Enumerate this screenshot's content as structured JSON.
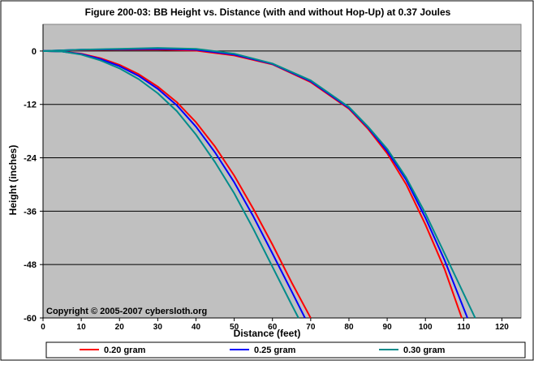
{
  "chart_data": {
    "type": "line",
    "title": "Figure 200-03:  BB Height vs. Distance (with and without Hop-Up) at 0.37 Joules",
    "xlabel": "Distance (feet)",
    "ylabel": "Height (inches)",
    "xlim": [
      0,
      125
    ],
    "ylim": [
      -60,
      6
    ],
    "x_ticks": [
      0,
      10,
      20,
      30,
      40,
      50,
      60,
      70,
      80,
      90,
      100,
      110,
      120
    ],
    "y_ticks": [
      0,
      -12,
      -24,
      -36,
      -48,
      -60
    ],
    "grid": "horizontal",
    "plot_background": "#c0c0c0",
    "legend_position": "bottom",
    "annotation": "Copyright © 2005-2007 cybersloth.org",
    "series": [
      {
        "name": "0.20 gram",
        "color": "#ff0000",
        "curves": [
          [
            [
              0,
              0
            ],
            [
              5,
              -0.1
            ],
            [
              10,
              -0.6
            ],
            [
              15,
              -1.6
            ],
            [
              20,
              -3.1
            ],
            [
              25,
              -5.2
            ],
            [
              30,
              -8.0
            ],
            [
              35,
              -11.5
            ],
            [
              40,
              -16.0
            ],
            [
              45,
              -21.5
            ],
            [
              50,
              -28.0
            ],
            [
              55,
              -35.5
            ],
            [
              60,
              -43.5
            ],
            [
              65,
              -52.0
            ],
            [
              70,
              -60.0
            ]
          ],
          [
            [
              0,
              0
            ],
            [
              10,
              0.2
            ],
            [
              20,
              0.3
            ],
            [
              30,
              0.3
            ],
            [
              40,
              0.1
            ],
            [
              50,
              -1.0
            ],
            [
              60,
              -3.0
            ],
            [
              70,
              -7.0
            ],
            [
              80,
              -13.0
            ],
            [
              85,
              -17.5
            ],
            [
              90,
              -23.0
            ],
            [
              95,
              -30.0
            ],
            [
              100,
              -39.0
            ],
            [
              105,
              -49.0
            ],
            [
              109.5,
              -60.0
            ]
          ]
        ]
      },
      {
        "name": "0.25 gram",
        "color": "#0000ff",
        "curves": [
          [
            [
              0,
              0
            ],
            [
              5,
              -0.1
            ],
            [
              10,
              -0.7
            ],
            [
              15,
              -1.8
            ],
            [
              20,
              -3.4
            ],
            [
              25,
              -5.6
            ],
            [
              30,
              -8.5
            ],
            [
              35,
              -12.2
            ],
            [
              40,
              -17.0
            ],
            [
              45,
              -22.8
            ],
            [
              50,
              -29.5
            ],
            [
              55,
              -37.2
            ],
            [
              60,
              -45.5
            ],
            [
              65,
              -54.0
            ],
            [
              68.5,
              -60.0
            ]
          ],
          [
            [
              0,
              0
            ],
            [
              10,
              0.3
            ],
            [
              20,
              0.4
            ],
            [
              30,
              0.5
            ],
            [
              40,
              0.3
            ],
            [
              50,
              -0.8
            ],
            [
              60,
              -2.9
            ],
            [
              70,
              -6.8
            ],
            [
              80,
              -12.8
            ],
            [
              85,
              -17.2
            ],
            [
              90,
              -22.5
            ],
            [
              95,
              -29.0
            ],
            [
              100,
              -37.5
            ],
            [
              105,
              -47.0
            ],
            [
              111,
              -60.0
            ]
          ]
        ]
      },
      {
        "name": "0.30 gram",
        "color": "#008b8b",
        "curves": [
          [
            [
              0,
              0
            ],
            [
              5,
              -0.1
            ],
            [
              10,
              -0.8
            ],
            [
              15,
              -2.1
            ],
            [
              20,
              -3.9
            ],
            [
              25,
              -6.3
            ],
            [
              30,
              -9.5
            ],
            [
              35,
              -13.5
            ],
            [
              40,
              -18.8
            ],
            [
              45,
              -25.0
            ],
            [
              50,
              -32.0
            ],
            [
              55,
              -40.0
            ],
            [
              60,
              -48.5
            ],
            [
              65,
              -57.0
            ],
            [
              66.8,
              -60.0
            ]
          ],
          [
            [
              0,
              0
            ],
            [
              10,
              0.3
            ],
            [
              20,
              0.5
            ],
            [
              30,
              0.7
            ],
            [
              40,
              0.5
            ],
            [
              50,
              -0.6
            ],
            [
              60,
              -2.8
            ],
            [
              70,
              -6.6
            ],
            [
              80,
              -12.6
            ],
            [
              85,
              -17.0
            ],
            [
              90,
              -22.0
            ],
            [
              95,
              -28.5
            ],
            [
              100,
              -36.5
            ],
            [
              105,
              -45.5
            ],
            [
              113,
              -60.0
            ]
          ]
        ]
      }
    ]
  }
}
